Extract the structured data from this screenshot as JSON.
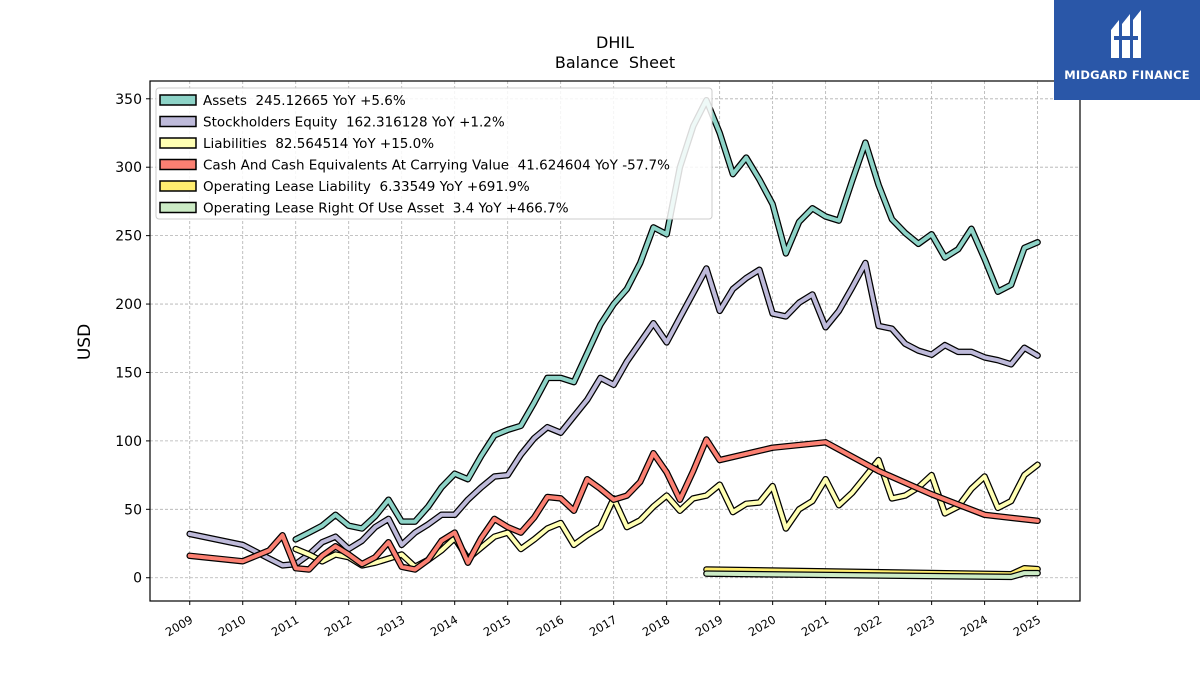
{
  "brand": {
    "name": "MIDGARD FINANCE",
    "logo_icon": "midgard-logo-icon",
    "background": "#2a57a8"
  },
  "chart_data": {
    "type": "line",
    "title": "DHIL",
    "subtitle": "Balance  Sheet",
    "xlabel": "",
    "ylabel": "USD",
    "xlim": [
      2008.25,
      2025.8
    ],
    "ylim": [
      -17,
      363
    ],
    "xticks": [
      "2009",
      "2010",
      "2011",
      "2012",
      "2013",
      "2014",
      "2015",
      "2016",
      "2017",
      "2018",
      "2019",
      "2020",
      "2021",
      "2022",
      "2023",
      "2024",
      "2025"
    ],
    "yticks": [
      0,
      50,
      100,
      150,
      200,
      250,
      300,
      350
    ],
    "grid": true,
    "legend_position": "top-left",
    "series": [
      {
        "name": "Assets",
        "legend": "Assets  245.12665 YoY +5.6%",
        "color": "#8dd3c7",
        "points": [
          [
            2011.0,
            28
          ],
          [
            2011.25,
            33
          ],
          [
            2011.5,
            38
          ],
          [
            2011.75,
            46
          ],
          [
            2012.0,
            38
          ],
          [
            2012.25,
            36
          ],
          [
            2012.5,
            45
          ],
          [
            2012.75,
            57
          ],
          [
            2013.0,
            41
          ],
          [
            2013.25,
            41
          ],
          [
            2013.5,
            52
          ],
          [
            2013.75,
            66
          ],
          [
            2014.0,
            76
          ],
          [
            2014.25,
            72
          ],
          [
            2014.5,
            89
          ],
          [
            2014.75,
            104
          ],
          [
            2015.0,
            108
          ],
          [
            2015.25,
            111
          ],
          [
            2015.5,
            128
          ],
          [
            2015.75,
            146
          ],
          [
            2016.0,
            146
          ],
          [
            2016.25,
            143
          ],
          [
            2016.5,
            164
          ],
          [
            2016.75,
            185
          ],
          [
            2017.0,
            200
          ],
          [
            2017.25,
            211
          ],
          [
            2017.5,
            230
          ],
          [
            2017.75,
            256
          ],
          [
            2018.0,
            251
          ],
          [
            2018.25,
            300
          ],
          [
            2018.5,
            330
          ],
          [
            2018.75,
            349
          ],
          [
            2019.0,
            325
          ],
          [
            2019.25,
            295
          ],
          [
            2019.5,
            307
          ],
          [
            2019.75,
            291
          ],
          [
            2020.0,
            273
          ],
          [
            2020.25,
            237
          ],
          [
            2020.5,
            260
          ],
          [
            2020.75,
            270
          ],
          [
            2021.0,
            264
          ],
          [
            2021.25,
            261
          ],
          [
            2021.5,
            290
          ],
          [
            2021.75,
            318
          ],
          [
            2022.0,
            287
          ],
          [
            2022.25,
            262
          ],
          [
            2022.5,
            252
          ],
          [
            2022.75,
            244
          ],
          [
            2023.0,
            251
          ],
          [
            2023.25,
            234
          ],
          [
            2023.5,
            240
          ],
          [
            2023.75,
            255
          ],
          [
            2024.0,
            233
          ],
          [
            2024.25,
            209
          ],
          [
            2024.5,
            214
          ],
          [
            2024.75,
            241
          ],
          [
            2025.0,
            245.12665
          ]
        ]
      },
      {
        "name": "Stockholders Equity",
        "legend": "Stockholders Equity  162.316128 YoY +1.2%",
        "color": "#bebada",
        "points": [
          [
            2009.0,
            32
          ],
          [
            2010.0,
            24
          ],
          [
            2010.5,
            14
          ],
          [
            2010.75,
            9
          ],
          [
            2011.0,
            10
          ],
          [
            2011.25,
            17
          ],
          [
            2011.5,
            26
          ],
          [
            2011.75,
            30
          ],
          [
            2012.0,
            21
          ],
          [
            2012.25,
            27
          ],
          [
            2012.5,
            37
          ],
          [
            2012.75,
            43
          ],
          [
            2013.0,
            24
          ],
          [
            2013.25,
            33
          ],
          [
            2013.5,
            39
          ],
          [
            2013.75,
            46
          ],
          [
            2014.0,
            46
          ],
          [
            2014.25,
            57
          ],
          [
            2014.5,
            66
          ],
          [
            2014.75,
            74
          ],
          [
            2015.0,
            75
          ],
          [
            2015.25,
            90
          ],
          [
            2015.5,
            102
          ],
          [
            2015.75,
            110
          ],
          [
            2016.0,
            106
          ],
          [
            2016.25,
            118
          ],
          [
            2016.5,
            130
          ],
          [
            2016.75,
            146
          ],
          [
            2017.0,
            141
          ],
          [
            2017.25,
            158
          ],
          [
            2017.5,
            172
          ],
          [
            2017.75,
            186
          ],
          [
            2018.0,
            172
          ],
          [
            2018.25,
            190
          ],
          [
            2018.5,
            208
          ],
          [
            2018.75,
            226
          ],
          [
            2019.0,
            195
          ],
          [
            2019.25,
            211
          ],
          [
            2019.5,
            219
          ],
          [
            2019.75,
            225
          ],
          [
            2020.0,
            193
          ],
          [
            2020.25,
            191
          ],
          [
            2020.5,
            201
          ],
          [
            2020.75,
            207
          ],
          [
            2021.0,
            183
          ],
          [
            2021.25,
            195
          ],
          [
            2021.5,
            212
          ],
          [
            2021.75,
            230
          ],
          [
            2022.0,
            184
          ],
          [
            2022.25,
            182
          ],
          [
            2022.5,
            171
          ],
          [
            2022.75,
            166
          ],
          [
            2023.0,
            163
          ],
          [
            2023.25,
            170
          ],
          [
            2023.5,
            165
          ],
          [
            2023.75,
            165
          ],
          [
            2024.0,
            161
          ],
          [
            2024.25,
            159
          ],
          [
            2024.5,
            156
          ],
          [
            2024.75,
            168
          ],
          [
            2025.0,
            162.316128
          ]
        ]
      },
      {
        "name": "Liabilities",
        "legend": "Liabilities  82.564514 YoY +15.0%",
        "color": "#ffffb3",
        "points": [
          [
            2011.0,
            21
          ],
          [
            2011.25,
            17
          ],
          [
            2011.5,
            12
          ],
          [
            2011.75,
            17
          ],
          [
            2012.0,
            15
          ],
          [
            2012.25,
            9
          ],
          [
            2012.5,
            11
          ],
          [
            2012.75,
            14
          ],
          [
            2013.0,
            17
          ],
          [
            2013.25,
            8
          ],
          [
            2013.5,
            13
          ],
          [
            2013.75,
            20
          ],
          [
            2014.0,
            29
          ],
          [
            2014.25,
            14
          ],
          [
            2014.5,
            22
          ],
          [
            2014.75,
            30
          ],
          [
            2015.0,
            33
          ],
          [
            2015.25,
            21
          ],
          [
            2015.5,
            28
          ],
          [
            2015.75,
            36
          ],
          [
            2016.0,
            40
          ],
          [
            2016.25,
            24
          ],
          [
            2016.5,
            31
          ],
          [
            2016.75,
            37
          ],
          [
            2017.0,
            58
          ],
          [
            2017.25,
            37
          ],
          [
            2017.5,
            42
          ],
          [
            2017.75,
            52
          ],
          [
            2018.0,
            60
          ],
          [
            2018.25,
            49
          ],
          [
            2018.5,
            58
          ],
          [
            2018.75,
            60
          ],
          [
            2019.0,
            68
          ],
          [
            2019.25,
            48
          ],
          [
            2019.5,
            54
          ],
          [
            2019.75,
            55
          ],
          [
            2020.0,
            67
          ],
          [
            2020.25,
            36
          ],
          [
            2020.5,
            50
          ],
          [
            2020.75,
            56
          ],
          [
            2021.0,
            72
          ],
          [
            2021.25,
            53
          ],
          [
            2021.5,
            62
          ],
          [
            2021.75,
            74
          ],
          [
            2022.0,
            86
          ],
          [
            2022.25,
            58
          ],
          [
            2022.5,
            60
          ],
          [
            2022.75,
            66
          ],
          [
            2023.0,
            75
          ],
          [
            2023.25,
            47
          ],
          [
            2023.5,
            52
          ],
          [
            2023.75,
            65
          ],
          [
            2024.0,
            74
          ],
          [
            2024.25,
            51
          ],
          [
            2024.5,
            56
          ],
          [
            2024.75,
            75
          ],
          [
            2025.0,
            82.564514
          ]
        ]
      },
      {
        "name": "Cash And Cash Equivalents At Carrying Value",
        "legend": "Cash And Cash Equivalents At Carrying Value  41.624604 YoY -57.7%",
        "color": "#fb8072",
        "points": [
          [
            2009.0,
            16
          ],
          [
            2010.0,
            12
          ],
          [
            2010.5,
            20
          ],
          [
            2010.75,
            31
          ],
          [
            2011.0,
            7
          ],
          [
            2011.25,
            6
          ],
          [
            2011.5,
            16
          ],
          [
            2011.75,
            23
          ],
          [
            2012.0,
            17
          ],
          [
            2012.25,
            10
          ],
          [
            2012.5,
            15
          ],
          [
            2012.75,
            26
          ],
          [
            2013.0,
            8
          ],
          [
            2013.25,
            6
          ],
          [
            2013.5,
            13
          ],
          [
            2013.75,
            27
          ],
          [
            2014.0,
            33
          ],
          [
            2014.25,
            11
          ],
          [
            2014.5,
            29
          ],
          [
            2014.75,
            43
          ],
          [
            2015.0,
            37
          ],
          [
            2015.25,
            33
          ],
          [
            2015.5,
            44
          ],
          [
            2015.75,
            59
          ],
          [
            2016.0,
            58
          ],
          [
            2016.25,
            49
          ],
          [
            2016.5,
            72
          ],
          [
            2016.75,
            65
          ],
          [
            2017.0,
            57
          ],
          [
            2017.25,
            60
          ],
          [
            2017.5,
            70
          ],
          [
            2017.75,
            91
          ],
          [
            2018.0,
            77
          ],
          [
            2018.25,
            57
          ],
          [
            2018.5,
            78
          ],
          [
            2018.75,
            101
          ],
          [
            2019.0,
            86
          ],
          [
            2020.0,
            95
          ],
          [
            2021.0,
            99
          ],
          [
            2022.0,
            78
          ],
          [
            2023.0,
            61
          ],
          [
            2024.0,
            46
          ],
          [
            2025.0,
            41.624604
          ]
        ]
      },
      {
        "name": "Operating Lease Liability",
        "legend": "Operating Lease Liability  6.33549 YoY +691.9%",
        "color": "#ffed6f",
        "points": [
          [
            2018.75,
            6
          ],
          [
            2024.5,
            2.5
          ],
          [
            2024.75,
            7
          ],
          [
            2025.0,
            6.33549
          ]
        ]
      },
      {
        "name": "Operating Lease Right Of Use Asset",
        "legend": "Operating Lease Right Of Use Asset  3.4 YoY +466.7%",
        "color": "#ccebc5",
        "points": [
          [
            2018.75,
            3
          ],
          [
            2024.5,
            0.6
          ],
          [
            2024.75,
            3.4
          ],
          [
            2025.0,
            3.4
          ]
        ]
      }
    ]
  }
}
